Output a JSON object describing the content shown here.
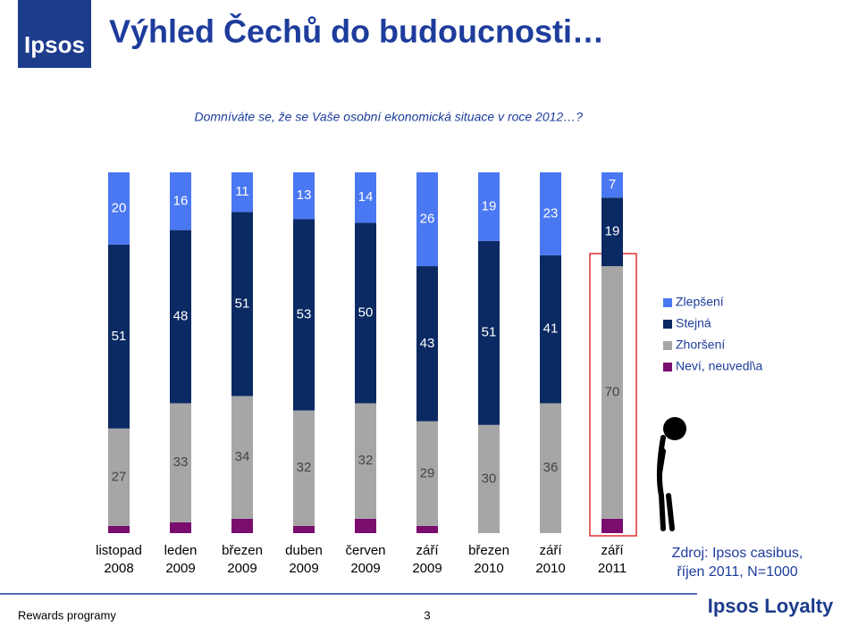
{
  "header": {
    "logo": "Ipsos",
    "title": "Výhled Čechů do budoucnosti…"
  },
  "chart_data": {
    "type": "bar",
    "stacked": true,
    "subtitle": "Domníváte se, že se Vaše osobní ekonomická situace v roce 2012…?",
    "categories": [
      [
        "listopad",
        "2008"
      ],
      [
        "leden",
        "2009"
      ],
      [
        "březen",
        "2009"
      ],
      [
        "duben",
        "2009"
      ],
      [
        "červen",
        "2009"
      ],
      [
        "září",
        "2009"
      ],
      [
        "březen",
        "2010"
      ],
      [
        "září",
        "2010"
      ],
      [
        "září",
        "2011"
      ]
    ],
    "series": [
      {
        "name": "Zlepšení",
        "color": "#4a78f2",
        "values": [
          20,
          16,
          11,
          13,
          14,
          26,
          19,
          23,
          7
        ]
      },
      {
        "name": "Stejná",
        "color": "#0b2a63",
        "values": [
          51,
          48,
          51,
          53,
          50,
          43,
          51,
          41,
          19
        ]
      },
      {
        "name": "Zhoršení",
        "color": "#a6a6a6",
        "values": [
          27,
          33,
          34,
          32,
          32,
          29,
          30,
          36,
          70
        ]
      },
      {
        "name": "Neví, neuvedl\\a",
        "color": "#7a0d6e",
        "values": [
          2,
          3,
          4,
          2,
          4,
          2,
          0,
          0,
          4
        ]
      }
    ]
  },
  "source": [
    "Zdroj: Ipsos casibus,",
    "říjen 2011, N=1000"
  ],
  "footer": {
    "left": "Rewards programy",
    "page": "3",
    "brand": "Ipsos Loyalty"
  }
}
